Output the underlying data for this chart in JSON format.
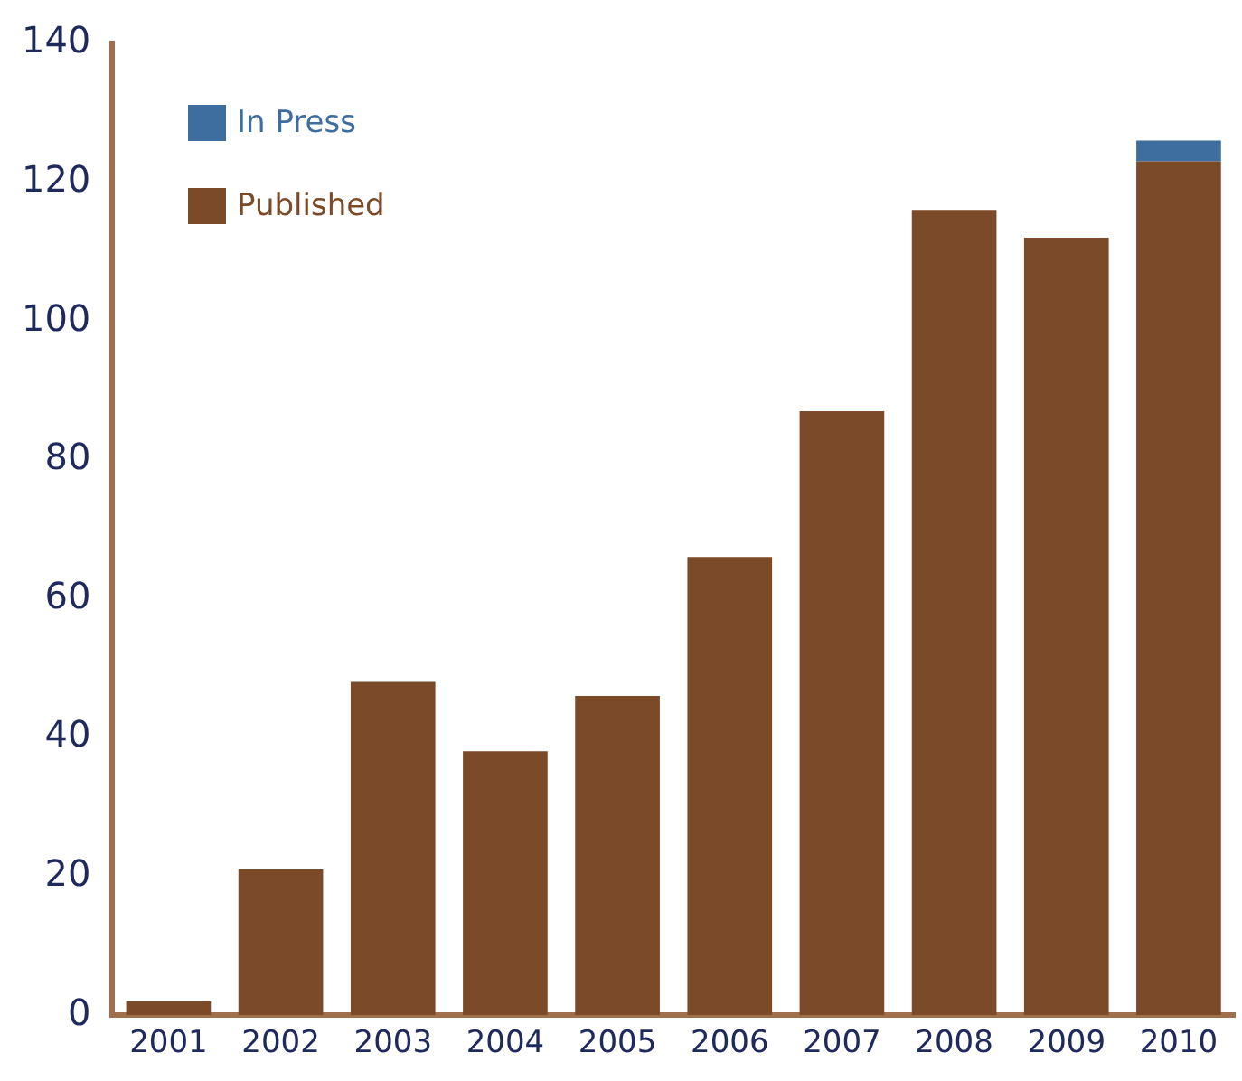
{
  "chart_data": {
    "type": "bar",
    "stacked": true,
    "categories": [
      "2001",
      "2002",
      "2003",
      "2004",
      "2005",
      "2006",
      "2007",
      "2008",
      "2009",
      "2010"
    ],
    "series": [
      {
        "name": "Published",
        "color": "#7b4a28",
        "values": [
          2,
          21,
          48,
          38,
          46,
          66,
          87,
          116,
          112,
          123
        ]
      },
      {
        "name": "In Press",
        "color": "#3e6da0",
        "values": [
          null,
          null,
          null,
          null,
          null,
          null,
          null,
          null,
          null,
          3
        ]
      }
    ],
    "ylim": [
      0,
      140
    ],
    "yticks": [
      0,
      20,
      40,
      60,
      80,
      100,
      120,
      140
    ],
    "grid": false,
    "legend": "top left"
  }
}
